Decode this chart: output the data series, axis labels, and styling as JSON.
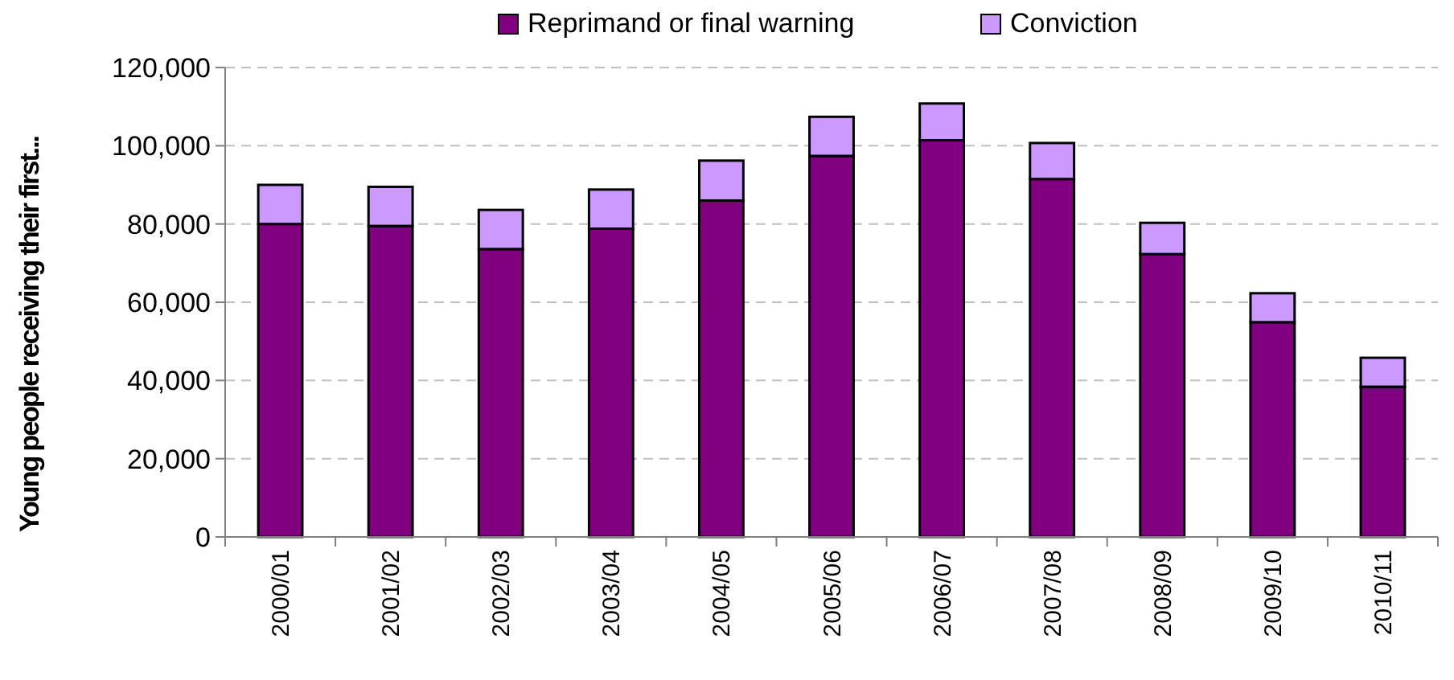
{
  "chart_data": {
    "type": "bar",
    "stacked": true,
    "ylabel": "Young people receiving their first...",
    "categories": [
      "2000/01",
      "2001/02",
      "2002/03",
      "2003/04",
      "2004/05",
      "2005/06",
      "2006/07",
      "2007/08",
      "2008/09",
      "2009/10",
      "2010/11"
    ],
    "series": [
      {
        "name": "Reprimand or final warning",
        "color": "#800080",
        "values": [
          80000,
          79500,
          73600,
          78800,
          86000,
          97400,
          101400,
          91500,
          72300,
          54900,
          38400
        ]
      },
      {
        "name": "Conviction",
        "color": "#cc99ff",
        "values": [
          10000,
          10000,
          10000,
          10000,
          10200,
          10000,
          9400,
          9200,
          8000,
          7400,
          7400
        ]
      }
    ],
    "ylim": [
      0,
      120000
    ],
    "yticks": [
      {
        "value": 0,
        "label": "0"
      },
      {
        "value": 20000,
        "label": "20,000"
      },
      {
        "value": 40000,
        "label": "40,000"
      },
      {
        "value": 60000,
        "label": "60,000"
      },
      {
        "value": 80000,
        "label": "80,000"
      },
      {
        "value": 100000,
        "label": "100,000"
      },
      {
        "value": 120000,
        "label": "120,000"
      }
    ],
    "grid": "y",
    "legend": "top"
  }
}
